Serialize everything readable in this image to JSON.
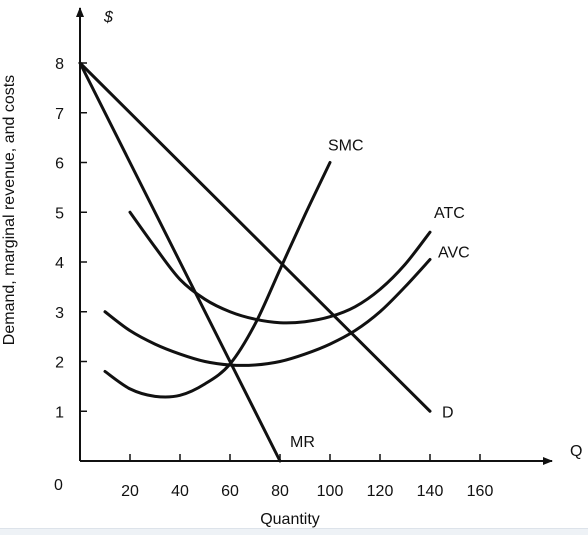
{
  "chart_data": {
    "type": "line",
    "title": "",
    "xlabel": "Quantity",
    "ylabel": "Demand, marginal revenue, and costs",
    "x_axis_symbol": "Q",
    "y_axis_symbol": "$",
    "origin_label": "0",
    "xlim": [
      0,
      180
    ],
    "ylim": [
      0,
      9
    ],
    "x_ticks": [
      20,
      40,
      60,
      80,
      100,
      120,
      140,
      160
    ],
    "y_ticks": [
      1,
      2,
      3,
      4,
      5,
      6,
      7,
      8
    ],
    "grid": false,
    "series": [
      {
        "name": "D",
        "x": [
          0,
          140
        ],
        "y": [
          8,
          1
        ]
      },
      {
        "name": "MR",
        "x": [
          0,
          80
        ],
        "y": [
          8,
          0
        ]
      },
      {
        "name": "SMC",
        "x": [
          10,
          20,
          30,
          40,
          50,
          60,
          70,
          80,
          90,
          100
        ],
        "y": [
          1.8,
          1.45,
          1.3,
          1.32,
          1.55,
          1.95,
          2.75,
          3.85,
          4.95,
          6.0
        ]
      },
      {
        "name": "ATC",
        "x": [
          20,
          30,
          40,
          50,
          60,
          70,
          80,
          90,
          100,
          110,
          120,
          130,
          140
        ],
        "y": [
          5.0,
          4.3,
          3.65,
          3.25,
          3.0,
          2.85,
          2.78,
          2.8,
          2.9,
          3.1,
          3.45,
          3.95,
          4.6
        ]
      },
      {
        "name": "AVC",
        "x": [
          10,
          20,
          30,
          40,
          50,
          60,
          70,
          80,
          90,
          100,
          110,
          120,
          130,
          140
        ],
        "y": [
          3.0,
          2.62,
          2.35,
          2.15,
          2.0,
          1.93,
          1.93,
          2.0,
          2.15,
          2.35,
          2.62,
          3.0,
          3.5,
          4.05
        ]
      }
    ]
  }
}
